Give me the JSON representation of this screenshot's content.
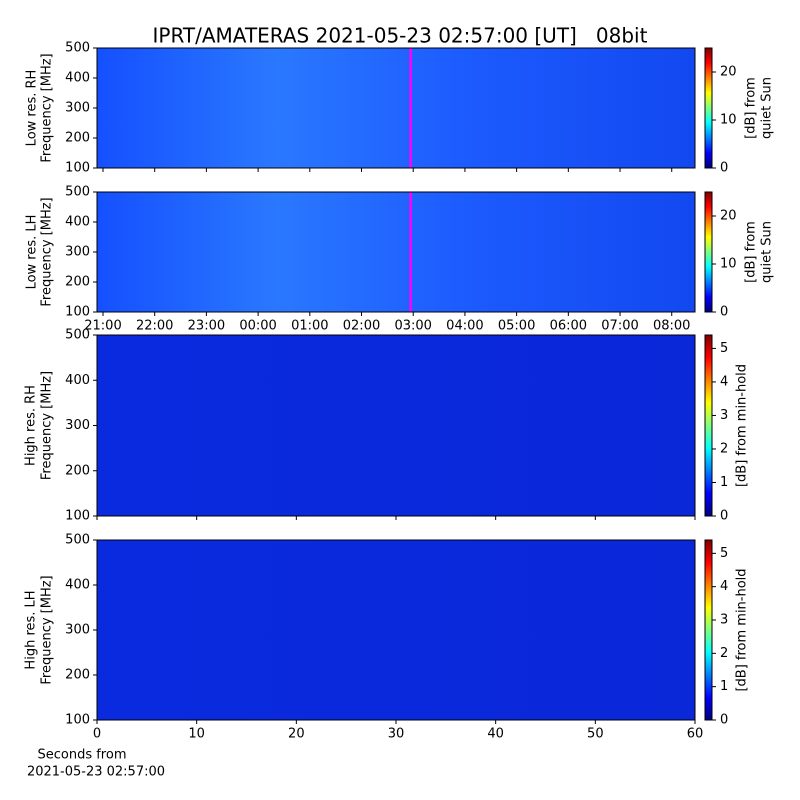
{
  "title": "IPRT/AMATERAS 2021-05-23 02:57:00 [UT]   08bit",
  "chart_data": [
    {
      "type": "heatmap",
      "ylabel": [
        "Low res. RH",
        "Frequency [MHz]"
      ],
      "xlim": [
        20.884,
        32.45
      ],
      "xticks": [
        21,
        22,
        23,
        24,
        25,
        26,
        27,
        28,
        29,
        30,
        31,
        32
      ],
      "xtick_labels": false,
      "ylim": [
        100,
        500
      ],
      "yticks": [
        100,
        200,
        300,
        400,
        500
      ],
      "cursor_x": 26.95,
      "cursor_color": "#ff00ff",
      "colormap": "jet",
      "colorbar": {
        "label": [
          "[dB] from",
          "quiet Sun"
        ],
        "lim": [
          0,
          25
        ],
        "ticks": [
          0,
          10,
          20
        ]
      }
    },
    {
      "type": "heatmap",
      "ylabel": [
        "Low res. LH",
        "Frequency [MHz]"
      ],
      "xlim": [
        20.884,
        32.45
      ],
      "xticks": [
        {
          "value": 21,
          "label": "21:00"
        },
        {
          "value": 22,
          "label": "22:00"
        },
        {
          "value": 23,
          "label": "23:00"
        },
        {
          "value": 24,
          "label": "00:00"
        },
        {
          "value": 25,
          "label": "01:00"
        },
        {
          "value": 26,
          "label": "02:00"
        },
        {
          "value": 27,
          "label": "03:00"
        },
        {
          "value": 28,
          "label": "04:00"
        },
        {
          "value": 29,
          "label": "05:00"
        },
        {
          "value": 30,
          "label": "06:00"
        },
        {
          "value": 31,
          "label": "07:00"
        },
        {
          "value": 32,
          "label": "08:00"
        }
      ],
      "ylim": [
        100,
        500
      ],
      "yticks": [
        100,
        200,
        300,
        400,
        500
      ],
      "cursor_x": 26.95,
      "cursor_color": "#ff00ff",
      "colormap": "jet",
      "colorbar": {
        "label": [
          "[dB] from",
          "quiet Sun"
        ],
        "lim": [
          0,
          25
        ],
        "ticks": [
          0,
          10,
          20
        ]
      }
    },
    {
      "type": "heatmap",
      "ylabel": [
        "High res. RH",
        "Frequency [MHz]"
      ],
      "xlim": [
        0,
        60
      ],
      "xticks": [
        0,
        10,
        20,
        30,
        40,
        50,
        60
      ],
      "xtick_labels": false,
      "ylim": [
        100,
        500
      ],
      "yticks": [
        100,
        200,
        300,
        400,
        500
      ],
      "colormap": "jet",
      "colorbar": {
        "label": [
          "[dB] from min-hold"
        ],
        "lim": [
          0,
          5.4
        ],
        "ticks": [
          0,
          1,
          2,
          3,
          4,
          5
        ]
      }
    },
    {
      "type": "heatmap",
      "ylabel": [
        "High res. LH",
        "Frequency [MHz]"
      ],
      "xlabel": [
        "Seconds from",
        "2021-05-23 02:57:00"
      ],
      "xlim": [
        0,
        60
      ],
      "xticks": [
        0,
        10,
        20,
        30,
        40,
        50,
        60
      ],
      "ylim": [
        100,
        500
      ],
      "yticks": [
        100,
        200,
        300,
        400,
        500
      ],
      "colormap": "jet",
      "colorbar": {
        "label": [
          "[dB] from min-hold"
        ],
        "lim": [
          0,
          5.4
        ],
        "ticks": [
          0,
          1,
          2,
          3,
          4,
          5
        ]
      }
    }
  ]
}
